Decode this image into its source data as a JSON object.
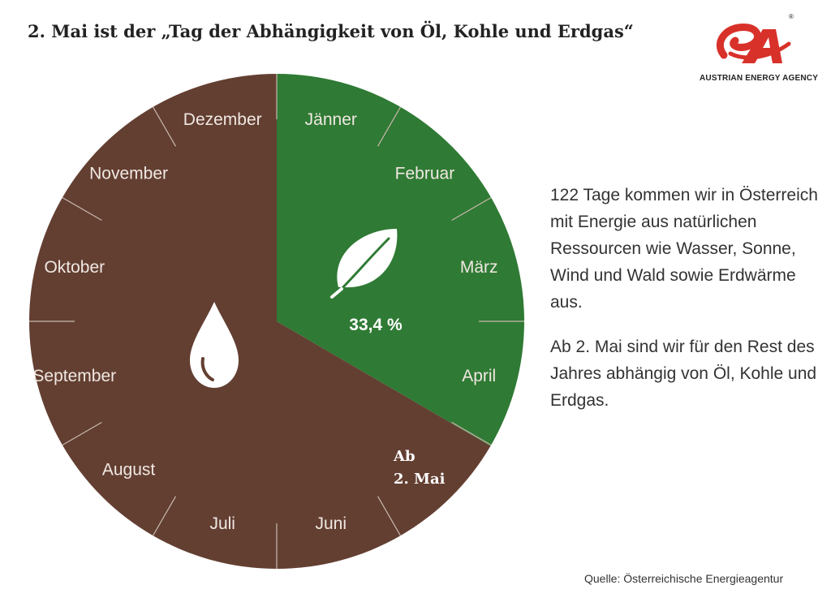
{
  "header": {
    "title": "2. Mai ist der „Tag der Abhängigkeit von Öl, Kohle und Erdgas“"
  },
  "logo": {
    "name": "austrian-energy-agency-logo",
    "text": "AUSTRIAN ENERGY AGENCY",
    "registered": "®"
  },
  "colors": {
    "renewable": "#2f7a34",
    "fossil": "#633f32",
    "label_light": "#f0e8e2",
    "divider": "#c8b8ad",
    "brand_red": "#d8312a"
  },
  "chart_data": {
    "type": "pie",
    "slices": [
      {
        "value": 33.4,
        "label": "33,4 %",
        "color": "#2f7a34",
        "icon": "leaf-icon"
      },
      {
        "value": 66.6,
        "label": "Ab 2. Mai",
        "color": "#633f32",
        "icon": "drop-icon"
      }
    ],
    "months": [
      "Jänner",
      "Februar",
      "März",
      "April",
      "Mai",
      "Juni",
      "Juli",
      "August",
      "September",
      "Oktober",
      "November",
      "Dezember"
    ],
    "month_labels_visible": [
      "Jänner",
      "Februar",
      "März",
      "April",
      "",
      "Juni",
      "Juli",
      "August",
      "September",
      "Oktober",
      "November",
      "Dezember"
    ],
    "start": "top",
    "direction": "clockwise",
    "callout": {
      "line1": "Ab",
      "line2": "2. Mai"
    }
  },
  "side_text": {
    "paragraph1": "122 Tage kommen wir in Österreich mit Energie aus natürlichen Ressourcen wie Wasser, Sonne, Wind und Wald sowie Erdwärme aus.",
    "paragraph2": "Ab 2. Mai sind wir für den Rest des Jahres abhängig von Öl, Kohle und Erdgas."
  },
  "footer": {
    "source": "Quelle: Österreichische Energieagentur"
  }
}
